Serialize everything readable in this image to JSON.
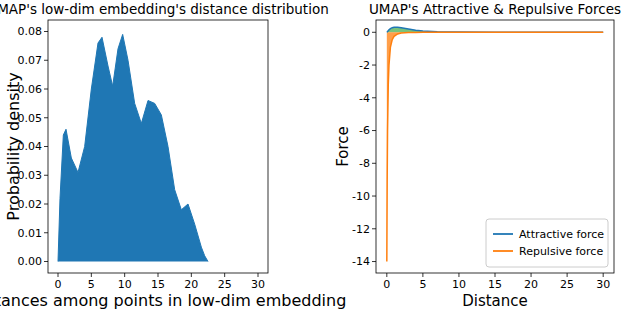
{
  "chart_data": [
    {
      "type": "area",
      "title": "UMAP's low-dim embedding's distance distribution",
      "x_label": "Distances among points in low-dim embedding",
      "y_label": "Probability density",
      "x": [
        0,
        0.3,
        0.8,
        1.2,
        2,
        3,
        4,
        5,
        6,
        6.6,
        7.5,
        8.2,
        9,
        9.7,
        10.5,
        11.5,
        12.5,
        13.5,
        14.5,
        15.5,
        16.5,
        17.5,
        18.5,
        19.5,
        20.5,
        21.5,
        22,
        22.5
      ],
      "values": [
        0,
        0.022,
        0.044,
        0.046,
        0.036,
        0.031,
        0.04,
        0.06,
        0.076,
        0.078,
        0.068,
        0.061,
        0.074,
        0.079,
        0.07,
        0.055,
        0.048,
        0.056,
        0.055,
        0.051,
        0.04,
        0.025,
        0.018,
        0.02,
        0.013,
        0.005,
        0.002,
        0
      ],
      "color": "#1f77b4",
      "xlim": [
        -1.5,
        31.5
      ],
      "ylim": [
        -0.004,
        0.084
      ],
      "xticks": [
        0,
        5,
        10,
        15,
        20,
        25,
        30
      ],
      "yticks": [
        {
          "value": 0,
          "label": "0.00"
        },
        0.01,
        0.02,
        0.03,
        0.04,
        0.05,
        0.06,
        0.07,
        0.08
      ]
    },
    {
      "type": "line",
      "title": "UMAP's Attractive & Repulsive Forces",
      "x_label": "Distance",
      "y_label": "Force",
      "x": [
        0,
        0.05,
        0.1,
        0.2,
        0.3,
        0.5,
        0.75,
        1,
        1.5,
        2,
        3,
        4,
        5,
        7,
        10,
        15,
        20,
        30
      ],
      "series": [
        {
          "name": "Attractive force",
          "color": "#1f77b4",
          "values": [
            0,
            0.02,
            0.05,
            0.1,
            0.15,
            0.22,
            0.28,
            0.3,
            0.3,
            0.27,
            0.2,
            0.13,
            0.08,
            0.03,
            0.01,
            0,
            0,
            0
          ]
        },
        {
          "name": "Repulsive force",
          "color": "#ff7f0e",
          "values": [
            -14,
            -9,
            -6,
            -3.2,
            -2,
            -0.9,
            -0.45,
            -0.25,
            -0.1,
            -0.05,
            -0.02,
            -0.01,
            -0.005,
            0,
            0,
            0,
            0,
            0
          ]
        }
      ],
      "xlim": [
        -1.5,
        31.5
      ],
      "ylim": [
        -14.7,
        0.75
      ],
      "xticks": [
        0,
        5,
        10,
        15,
        20,
        25,
        30
      ],
      "yticks": [
        -14,
        -12,
        -10,
        -8,
        -6,
        -4,
        -2,
        0
      ],
      "legend": "lower right"
    }
  ]
}
